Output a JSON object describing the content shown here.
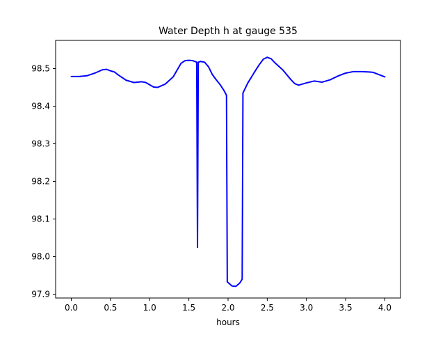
{
  "chart_data": {
    "type": "line",
    "title": "Water Depth h at gauge 535",
    "xlabel": "hours",
    "ylabel": "",
    "xlim": [
      -0.2,
      4.2
    ],
    "ylim": [
      97.89,
      98.575
    ],
    "xticks": [
      0.0,
      0.5,
      1.0,
      1.5,
      2.0,
      2.5,
      3.0,
      3.5,
      4.0
    ],
    "xtick_labels": [
      "0.0",
      "0.5",
      "1.0",
      "1.5",
      "2.0",
      "2.5",
      "3.0",
      "3.5",
      "4.0"
    ],
    "yticks": [
      97.9,
      98.0,
      98.1,
      98.2,
      98.3,
      98.4,
      98.5
    ],
    "ytick_labels": [
      "97.9",
      "98.0",
      "98.1",
      "98.2",
      "98.3",
      "98.4",
      "98.5"
    ],
    "grid": false,
    "legend": "none",
    "series": [
      {
        "color": "#0000ff",
        "points": [
          [
            0.0,
            98.479
          ],
          [
            0.1,
            98.479
          ],
          [
            0.2,
            98.481
          ],
          [
            0.3,
            98.488
          ],
          [
            0.4,
            98.497
          ],
          [
            0.45,
            98.498
          ],
          [
            0.5,
            98.494
          ],
          [
            0.55,
            98.491
          ],
          [
            0.6,
            98.483
          ],
          [
            0.7,
            98.469
          ],
          [
            0.8,
            98.463
          ],
          [
            0.9,
            98.465
          ],
          [
            0.95,
            98.463
          ],
          [
            1.0,
            98.457
          ],
          [
            1.05,
            98.451
          ],
          [
            1.1,
            98.45
          ],
          [
            1.2,
            98.459
          ],
          [
            1.3,
            98.478
          ],
          [
            1.35,
            98.496
          ],
          [
            1.4,
            98.514
          ],
          [
            1.45,
            98.521
          ],
          [
            1.5,
            98.522
          ],
          [
            1.55,
            98.521
          ],
          [
            1.6,
            98.517
          ],
          [
            1.61,
            98.025
          ],
          [
            1.62,
            98.517
          ],
          [
            1.65,
            98.519
          ],
          [
            1.7,
            98.517
          ],
          [
            1.75,
            98.505
          ],
          [
            1.8,
            98.484
          ],
          [
            1.85,
            98.47
          ],
          [
            1.9,
            98.457
          ],
          [
            1.95,
            98.441
          ],
          [
            1.98,
            98.429
          ],
          [
            1.99,
            97.933
          ],
          [
            2.05,
            97.922
          ],
          [
            2.1,
            97.921
          ],
          [
            2.15,
            97.93
          ],
          [
            2.18,
            97.94
          ],
          [
            2.19,
            98.435
          ],
          [
            2.25,
            98.461
          ],
          [
            2.3,
            98.478
          ],
          [
            2.35,
            98.495
          ],
          [
            2.4,
            98.511
          ],
          [
            2.45,
            98.525
          ],
          [
            2.5,
            98.53
          ],
          [
            2.55,
            98.526
          ],
          [
            2.6,
            98.515
          ],
          [
            2.7,
            98.496
          ],
          [
            2.8,
            98.471
          ],
          [
            2.85,
            98.46
          ],
          [
            2.9,
            98.456
          ],
          [
            3.0,
            98.462
          ],
          [
            3.1,
            98.467
          ],
          [
            3.2,
            98.464
          ],
          [
            3.3,
            98.47
          ],
          [
            3.4,
            98.48
          ],
          [
            3.5,
            98.488
          ],
          [
            3.6,
            98.492
          ],
          [
            3.7,
            98.492
          ],
          [
            3.8,
            98.491
          ],
          [
            3.85,
            98.49
          ],
          [
            3.9,
            98.486
          ],
          [
            4.0,
            98.478
          ]
        ]
      }
    ]
  }
}
